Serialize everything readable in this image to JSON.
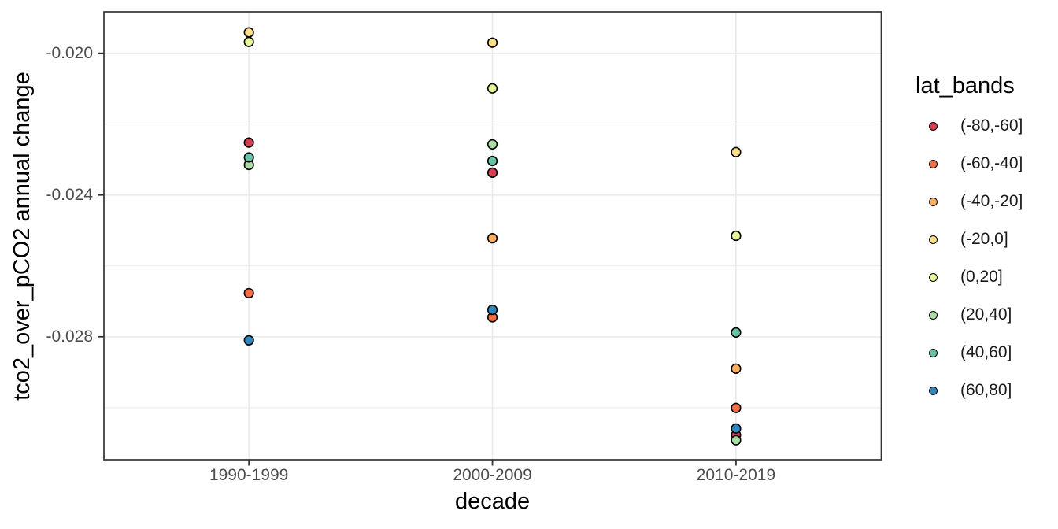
{
  "figure": {
    "background": "#FFFFFF",
    "panel_background": "#FFFFFF",
    "panel_border_color": "#333333",
    "grid_color": "#EBEBEB",
    "tick_mark_color": "#333333",
    "tick_label_color": "#4D4D4D",
    "title_color": "#000000",
    "point_outline_color": "#000000"
  },
  "chart_data": {
    "type": "scatter",
    "title": "",
    "xlabel": "decade",
    "ylabel": "tco2_over_pCO2 annual change",
    "categories": [
      "1990-1999",
      "2000-2009",
      "2010-2019"
    ],
    "y_axis": {
      "tick_values": [
        -0.02,
        -0.024,
        -0.028
      ],
      "tick_labels": [
        "-0.020",
        "-0.024",
        "-0.028"
      ],
      "minor_tick_values": [
        -0.022,
        -0.026,
        -0.03
      ],
      "range": [
        -0.03147,
        -0.01883
      ]
    },
    "grid": "horizontal major+minor, vertical major only",
    "legend_position": "right",
    "series": [
      {
        "name": "(-80,-60]",
        "color": "#D53E4F",
        "values": [
          -0.02252,
          -0.02337,
          -0.03077
        ]
      },
      {
        "name": "(-60,-40]",
        "color": "#F46D43",
        "values": [
          -0.02677,
          -0.02745,
          -0.03001
        ]
      },
      {
        "name": "(-40,-20]",
        "color": "#FDAE61",
        "values": [
          null,
          -0.02522,
          -0.0289
        ]
      },
      {
        "name": "(-20,0]",
        "color": "#FEE08B",
        "values": [
          -0.01941,
          -0.0197,
          -0.02279
        ]
      },
      {
        "name": "(0,20]",
        "color": "#E6F598",
        "values": [
          -0.01968,
          -0.02099,
          -0.02515
        ]
      },
      {
        "name": "(20,40]",
        "color": "#ABDDA4",
        "values": [
          -0.02315,
          -0.02257,
          -0.03092
        ]
      },
      {
        "name": "(40,60]",
        "color": "#66C2A5",
        "values": [
          -0.02294,
          -0.02304,
          -0.02788
        ]
      },
      {
        "name": "(60,80]",
        "color": "#3288BD",
        "values": [
          -0.0281,
          -0.02724,
          -0.03059
        ]
      }
    ]
  },
  "legend": {
    "title": "lat_bands"
  }
}
